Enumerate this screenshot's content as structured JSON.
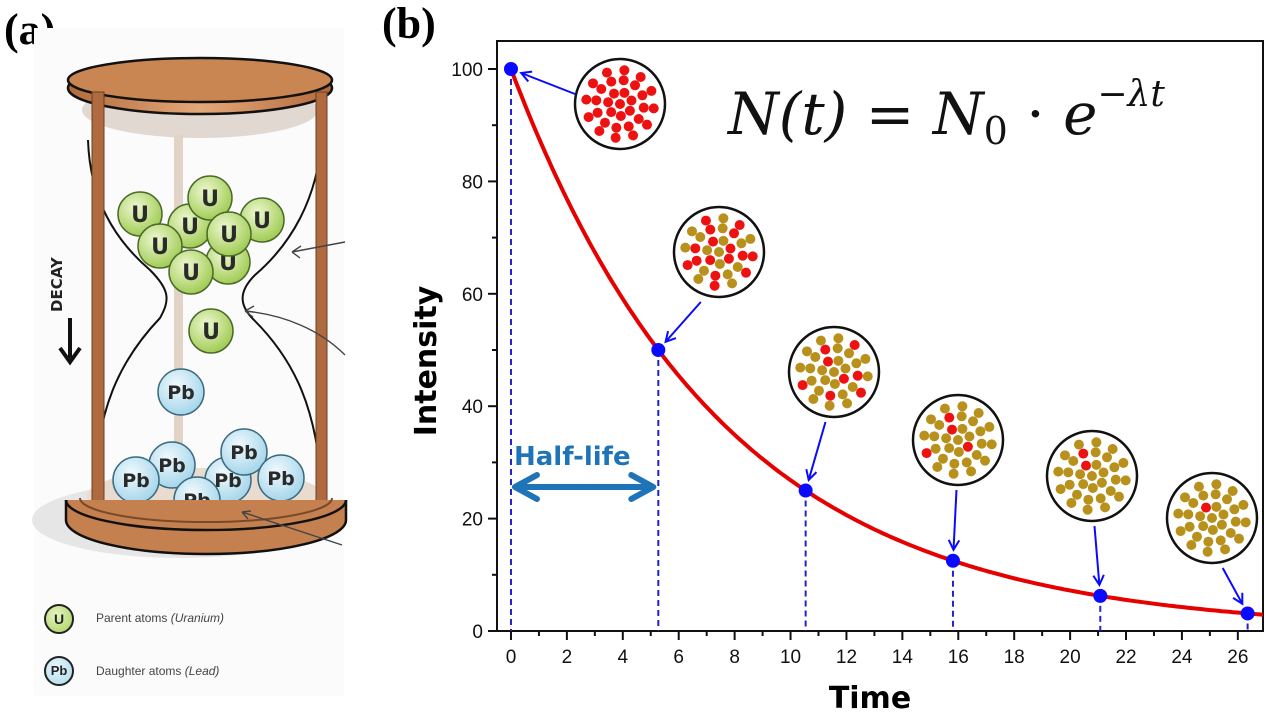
{
  "panels": {
    "a": {
      "label": "(a)",
      "decay_arrow_label": "DECAY",
      "atom_label_parent": "U",
      "atom_label_daughter": "Pb",
      "legend": [
        {
          "symbol": "U",
          "text": "Parent atoms ",
          "italic": "(Uranium)"
        },
        {
          "symbol": "Pb",
          "text": "Daughter atoms ",
          "italic": "(Lead)"
        }
      ]
    },
    "b": {
      "label": "(b)",
      "formula": {
        "lhs": "N(t)",
        "equals": "=",
        "n": "N",
        "n_sub": "0",
        "dot": "·",
        "e": "e",
        "exp": "−λt"
      },
      "half_life_label": "Half-life"
    }
  },
  "colors": {
    "curve": "#e60000",
    "points": "#0a0aff",
    "dashed_lines": "#2222cc",
    "half_life": "#1f73b7",
    "parent_atom": "#ee1111",
    "daughter_atom": "#b8901c"
  },
  "chart_data": {
    "type": "line",
    "title": "",
    "xlabel": "Time",
    "ylabel": "Intensity",
    "xlim": [
      -0.5,
      26.9
    ],
    "ylim": [
      0,
      100
    ],
    "x_ticks": [
      0,
      2,
      4,
      6,
      8,
      10,
      12,
      14,
      16,
      18,
      20,
      22,
      24,
      26
    ],
    "x_minor_ticks": [
      1,
      3,
      5,
      7,
      9,
      11,
      13,
      15,
      17,
      19,
      21,
      23,
      25
    ],
    "y_ticks": [
      0,
      20,
      40,
      60,
      80,
      100
    ],
    "y_minor_ticks": [
      10,
      30,
      50,
      70,
      90
    ],
    "grid": false,
    "half_life": 5.27,
    "series": [
      {
        "name": "N(t) curve",
        "kind": "exponential",
        "N0": 100,
        "x_range": [
          0,
          26.9
        ]
      },
      {
        "name": "half-life points",
        "x": [
          0,
          5.27,
          10.54,
          15.81,
          21.08,
          26.35
        ],
        "y": [
          100,
          50,
          25,
          12.5,
          6.25,
          3.125
        ]
      }
    ],
    "sample_insets": [
      {
        "parent_atoms": 32,
        "daughter_atoms": 0
      },
      {
        "parent_atoms": 16,
        "daughter_atoms": 16
      },
      {
        "parent_atoms": 8,
        "daughter_atoms": 24
      },
      {
        "parent_atoms": 4,
        "daughter_atoms": 28
      },
      {
        "parent_atoms": 2,
        "daughter_atoms": 30
      },
      {
        "parent_atoms": 1,
        "daughter_atoms": 31
      }
    ]
  }
}
